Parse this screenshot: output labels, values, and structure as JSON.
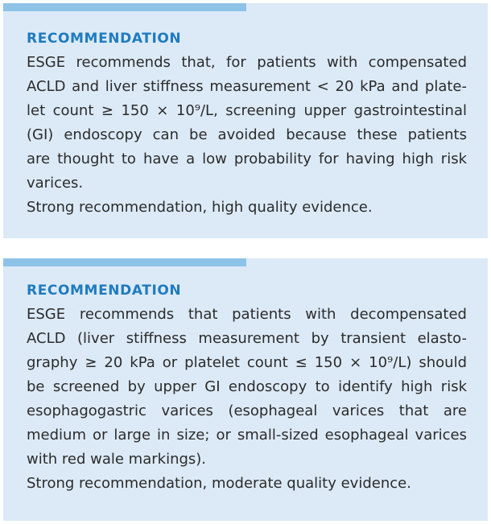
{
  "recommendations": [
    {
      "heading": "RECOMMENDATION",
      "lines": [
        "ESGE recommends that, for patients with compensated",
        "ACLD and liver stiffness measurement < 20 kPa and plate-",
        "let count ≥ 150 × 10⁹/L, screening upper gastrointestinal",
        "(GI) endoscopy can be avoided because these patients",
        "are thought to have a low probability for having high risk",
        "varices."
      ],
      "strength": "Strong recommendation, high quality evidence."
    },
    {
      "heading": "RECOMMENDATION",
      "lines": [
        "ESGE recommends that patients with decompensated",
        "ACLD (liver stiffness measurement by transient elasto-",
        "graphy ≥ 20 kPa or platelet count ≤ 150 × 10⁹/L) should",
        "be screened by upper GI endoscopy to identify high risk",
        "esophagogastric varices (esophageal varices that are",
        "medium or large in size; or small-sized esophageal varices",
        "with red wale markings)."
      ],
      "strength": "Strong recommendation, moderate quality evidence."
    }
  ]
}
